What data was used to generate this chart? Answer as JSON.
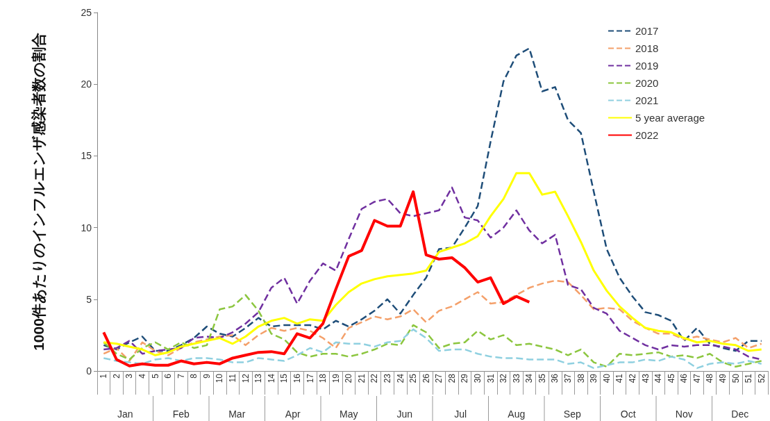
{
  "chart_data": {
    "type": "line",
    "ylabel": "1000件あたりのインフルエンザ感染者数の割合",
    "categories": [
      "1",
      "2",
      "3",
      "4",
      "5",
      "6",
      "7",
      "8",
      "9",
      "10",
      "11",
      "12",
      "13",
      "14",
      "15",
      "16",
      "17",
      "18",
      "19",
      "20",
      "21",
      "22",
      "23",
      "24",
      "25",
      "26",
      "27",
      "28",
      "29",
      "30",
      "31",
      "32",
      "33",
      "34",
      "35",
      "36",
      "37",
      "38",
      "39",
      "40",
      "41",
      "42",
      "43",
      "44",
      "45",
      "46",
      "47",
      "48",
      "49",
      "50",
      "51",
      "52"
    ],
    "series": [
      {
        "name": "2017",
        "color": "#1f4e79",
        "line_style": "dashed",
        "values": [
          1.8,
          1.5,
          2.0,
          2.4,
          1.4,
          1.4,
          1.8,
          2.3,
          3.1,
          2.6,
          2.4,
          3.0,
          3.7,
          3.1,
          3.2,
          3.2,
          3.2,
          2.9,
          3.5,
          3.1,
          3.6,
          4.2,
          5.0,
          4.0,
          5.3,
          6.5,
          8.5,
          8.6,
          10.0,
          11.5,
          16.0,
          20.2,
          22.0,
          22.5,
          19.5,
          19.8,
          17.5,
          16.6,
          12.5,
          8.5,
          6.5,
          5.2,
          4.1,
          3.9,
          3.5,
          2.1,
          3.0,
          1.9,
          1.6,
          1.4,
          2.1,
          2.1
        ]
      },
      {
        "name": "2018",
        "color": "#f4a06a",
        "line_style": "dashed",
        "values": [
          1.2,
          1.6,
          0.7,
          2.0,
          1.4,
          1.1,
          1.6,
          2.0,
          2.2,
          2.4,
          2.5,
          1.8,
          2.5,
          3.0,
          2.8,
          3.0,
          2.8,
          2.3,
          1.6,
          3.0,
          3.4,
          3.8,
          3.6,
          3.8,
          4.3,
          3.4,
          4.2,
          4.5,
          5.0,
          5.5,
          4.7,
          4.8,
          5.3,
          5.8,
          6.1,
          6.3,
          6.2,
          5.3,
          4.3,
          4.4,
          4.3,
          3.5,
          3.0,
          2.6,
          2.6,
          2.2,
          2.4,
          2.2,
          2.0,
          2.3,
          1.6,
          1.9
        ]
      },
      {
        "name": "2019",
        "color": "#7030a0",
        "line_style": "dashed",
        "values": [
          1.5,
          1.6,
          2.1,
          1.2,
          1.4,
          1.5,
          1.6,
          2.3,
          2.4,
          2.3,
          2.7,
          3.3,
          4.1,
          5.8,
          6.5,
          4.7,
          6.3,
          7.5,
          7.0,
          9.2,
          11.3,
          11.8,
          12.0,
          11.0,
          10.8,
          11.0,
          11.2,
          12.8,
          10.7,
          10.5,
          9.3,
          10.0,
          11.2,
          9.8,
          8.9,
          9.5,
          6.0,
          5.7,
          4.4,
          4.0,
          2.8,
          2.3,
          1.8,
          1.5,
          1.8,
          1.7,
          1.8,
          1.8,
          1.7,
          1.5,
          1.0,
          0.8
        ]
      },
      {
        "name": "2020",
        "color": "#8cc63f",
        "line_style": "dashed",
        "values": [
          2.0,
          1.2,
          0.8,
          1.6,
          2.0,
          1.5,
          2.0,
          1.6,
          1.8,
          4.3,
          4.5,
          5.3,
          4.2,
          2.6,
          2.2,
          1.3,
          1.0,
          1.2,
          1.2,
          1.0,
          1.2,
          1.5,
          1.9,
          1.8,
          3.2,
          2.7,
          1.6,
          1.9,
          2.0,
          2.8,
          2.2,
          2.5,
          1.8,
          1.9,
          1.7,
          1.5,
          1.1,
          1.5,
          0.6,
          0.3,
          1.2,
          1.1,
          1.2,
          1.3,
          1.0,
          1.1,
          0.9,
          1.2,
          0.6,
          0.3,
          0.5,
          0.7
        ]
      },
      {
        "name": "2021",
        "color": "#8fd0e0",
        "line_style": "dashed",
        "values": [
          0.9,
          0.7,
          0.6,
          0.5,
          0.8,
          0.9,
          0.7,
          0.9,
          0.9,
          0.8,
          0.6,
          0.6,
          0.9,
          0.8,
          0.7,
          1.1,
          1.6,
          1.3,
          2.0,
          1.9,
          1.9,
          1.7,
          2.0,
          2.1,
          2.9,
          2.3,
          1.4,
          1.5,
          1.5,
          1.2,
          1.0,
          0.9,
          0.9,
          0.8,
          0.8,
          0.8,
          0.5,
          0.6,
          0.2,
          0.4,
          0.6,
          0.6,
          0.8,
          0.7,
          1.0,
          0.8,
          0.2,
          0.5,
          0.6,
          0.5,
          0.7,
          0.5
        ]
      },
      {
        "name": "5 year average",
        "color": "#ffff00",
        "line_style": "solid",
        "values": [
          2.0,
          1.9,
          1.7,
          1.5,
          1.1,
          1.3,
          1.7,
          1.9,
          2.1,
          2.3,
          1.9,
          2.4,
          3.1,
          3.5,
          3.7,
          3.3,
          3.6,
          3.5,
          4.6,
          5.5,
          6.1,
          6.4,
          6.6,
          6.7,
          6.8,
          7.0,
          8.3,
          8.6,
          8.9,
          9.4,
          10.8,
          12.0,
          13.8,
          13.8,
          12.3,
          12.5,
          10.8,
          9.0,
          7.0,
          5.6,
          4.5,
          3.7,
          3.0,
          2.8,
          2.7,
          2.3,
          2.0,
          2.1,
          1.9,
          1.8,
          1.4,
          1.5
        ]
      },
      {
        "name": "2022",
        "color": "#ff0000",
        "line_style": "solid",
        "values": [
          2.7,
          0.8,
          0.35,
          0.5,
          0.4,
          0.4,
          0.7,
          0.5,
          0.6,
          0.5,
          0.9,
          1.1,
          1.3,
          1.35,
          1.2,
          2.6,
          2.3,
          3.3,
          5.7,
          8.0,
          8.4,
          10.5,
          10.1,
          10.1,
          12.5,
          8.1,
          7.8,
          7.9,
          7.2,
          6.2,
          6.5,
          4.7,
          5.2,
          4.8,
          null,
          null,
          null,
          null,
          null,
          null,
          null,
          null,
          null,
          null,
          null,
          null,
          null,
          null,
          null,
          null,
          null,
          null
        ]
      }
    ],
    "annotations": [
      "Jan",
      "Feb",
      "Mar",
      "Apr",
      "May",
      "Jun",
      "Jul",
      "Aug",
      "Sep",
      "Oct",
      "Nov",
      "Dec"
    ],
    "ylim": [
      0,
      25
    ],
    "yticks": [
      0,
      5,
      10,
      15,
      20,
      25
    ],
    "grid": false,
    "legend": "top right",
    "marker": "none"
  }
}
